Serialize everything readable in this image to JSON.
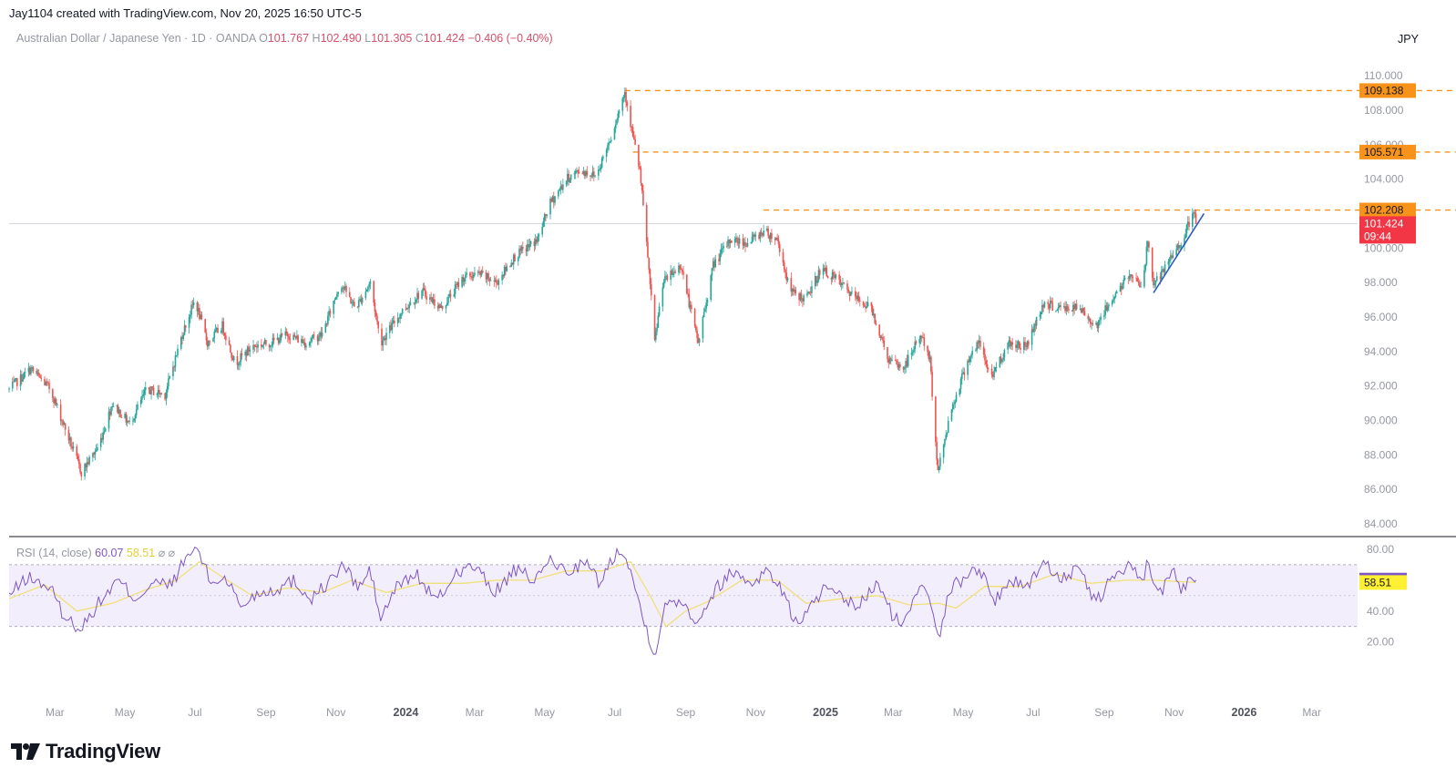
{
  "header": {
    "attribution": "Jay1104 created with TradingView.com, Nov 20, 2025 16:50 UTC-5"
  },
  "legend": {
    "symbol": "Australian Dollar / Japanese Yen · 1D · OANDA",
    "open_label": "O",
    "open": "101.767",
    "high_label": "H",
    "high": "102.490",
    "low_label": "L",
    "low": "101.305",
    "close_label": "C",
    "close": "101.424",
    "change": "−0.406 (−0.40%)"
  },
  "currency": "JPY",
  "rsi_legend": {
    "label": "RSI (14, close)",
    "rsi": "60.07",
    "ma": "58.51",
    "extra": "⌀ ⌀"
  },
  "brand": {
    "name": "TradingView"
  },
  "colors": {
    "up": "#26a69a",
    "down": "#ef5350",
    "level": "#f7931a",
    "price_tag": "#f23645",
    "rsi": "#7e57c2",
    "rsi_ma": "#f0e07a",
    "rsi_band": "#f3eefb",
    "trendline": "#2a5cbf"
  },
  "chart_data": [
    {
      "type": "candlestick",
      "title": "Australian Dollar / Japanese Yen · 1D · OANDA",
      "ylim": [
        84,
        110.8
      ],
      "y_ticks": [
        "110.000",
        "108.000",
        "106.000",
        "104.000",
        "102.000",
        "100.000",
        "98.000",
        "96.000",
        "94.000",
        "92.000",
        "90.000",
        "88.000",
        "86.000",
        "84.000"
      ],
      "x_tick_labels": [
        {
          "label": "Mar",
          "bold": false
        },
        {
          "label": "May",
          "bold": false
        },
        {
          "label": "Jul",
          "bold": false
        },
        {
          "label": "Sep",
          "bold": false
        },
        {
          "label": "Nov",
          "bold": false
        },
        {
          "label": "2024",
          "bold": true
        },
        {
          "label": "Mar",
          "bold": false
        },
        {
          "label": "May",
          "bold": false
        },
        {
          "label": "Jul",
          "bold": false
        },
        {
          "label": "Sep",
          "bold": false
        },
        {
          "label": "Nov",
          "bold": false
        },
        {
          "label": "2025",
          "bold": true
        },
        {
          "label": "Mar",
          "bold": false
        },
        {
          "label": "May",
          "bold": false
        },
        {
          "label": "Jul",
          "bold": false
        },
        {
          "label": "Sep",
          "bold": false
        },
        {
          "label": "Nov",
          "bold": false
        },
        {
          "label": "2026",
          "bold": true
        },
        {
          "label": "Mar",
          "bold": false
        }
      ],
      "x_range": [
        "2023-01-20",
        "2026-04-10"
      ],
      "close_path": [
        [
          "2023-01-20",
          91.8
        ],
        [
          "2023-02-08",
          93.0
        ],
        [
          "2023-02-25",
          91.8
        ],
        [
          "2023-03-10",
          89.5
        ],
        [
          "2023-03-24",
          87.0
        ],
        [
          "2023-04-08",
          88.5
        ],
        [
          "2023-04-20",
          91.0
        ],
        [
          "2023-05-05",
          89.8
        ],
        [
          "2023-05-20",
          91.8
        ],
        [
          "2023-06-05",
          91.5
        ],
        [
          "2023-06-20",
          95.0
        ],
        [
          "2023-07-01",
          97.0
        ],
        [
          "2023-07-12",
          94.5
        ],
        [
          "2023-07-25",
          95.5
        ],
        [
          "2023-08-05",
          93.3
        ],
        [
          "2023-08-20",
          94.3
        ],
        [
          "2023-09-05",
          94.5
        ],
        [
          "2023-09-20",
          95.0
        ],
        [
          "2023-10-05",
          94.5
        ],
        [
          "2023-10-20",
          95.0
        ],
        [
          "2023-11-05",
          98.0
        ],
        [
          "2023-11-18",
          96.5
        ],
        [
          "2023-12-01",
          98.0
        ],
        [
          "2023-12-10",
          94.5
        ],
        [
          "2023-12-28",
          96.3
        ],
        [
          "2024-01-15",
          97.5
        ],
        [
          "2024-02-01",
          96.5
        ],
        [
          "2024-02-20",
          98.3
        ],
        [
          "2024-03-05",
          98.5
        ],
        [
          "2024-03-20",
          98.0
        ],
        [
          "2024-04-05",
          99.5
        ],
        [
          "2024-04-25",
          100.5
        ],
        [
          "2024-05-05",
          102.5
        ],
        [
          "2024-05-20",
          104.0
        ],
        [
          "2024-06-01",
          104.5
        ],
        [
          "2024-06-15",
          104.2
        ],
        [
          "2024-06-28",
          106.5
        ],
        [
          "2024-07-05",
          108.0
        ],
        [
          "2024-07-10",
          109.1
        ],
        [
          "2024-07-17",
          106.5
        ],
        [
          "2024-07-23",
          104.5
        ],
        [
          "2024-07-30",
          99.5
        ],
        [
          "2024-08-05",
          94.5
        ],
        [
          "2024-08-12",
          98.0
        ],
        [
          "2024-08-20",
          98.5
        ],
        [
          "2024-08-28",
          99.0
        ],
        [
          "2024-09-05",
          96.5
        ],
        [
          "2024-09-12",
          94.5
        ],
        [
          "2024-09-25",
          99.0
        ],
        [
          "2024-10-10",
          100.5
        ],
        [
          "2024-10-25",
          100.3
        ],
        [
          "2024-11-08",
          101.0
        ],
        [
          "2024-11-20",
          100.5
        ],
        [
          "2024-12-01",
          97.5
        ],
        [
          "2024-12-15",
          97.0
        ],
        [
          "2024-12-28",
          98.8
        ],
        [
          "2025-01-10",
          98.2
        ],
        [
          "2025-01-25",
          97.2
        ],
        [
          "2025-02-10",
          96.5
        ],
        [
          "2025-02-25",
          93.5
        ],
        [
          "2025-03-10",
          93.0
        ],
        [
          "2025-03-25",
          95.0
        ],
        [
          "2025-04-02",
          93.5
        ],
        [
          "2025-04-09",
          87.0
        ],
        [
          "2025-04-20",
          90.5
        ],
        [
          "2025-05-05",
          93.5
        ],
        [
          "2025-05-15",
          94.5
        ],
        [
          "2025-05-25",
          92.5
        ],
        [
          "2025-06-10",
          94.5
        ],
        [
          "2025-06-25",
          94.3
        ],
        [
          "2025-07-10",
          96.8
        ],
        [
          "2025-07-25",
          96.5
        ],
        [
          "2025-08-10",
          96.5
        ],
        [
          "2025-08-25",
          95.5
        ],
        [
          "2025-09-10",
          97.3
        ],
        [
          "2025-09-25",
          98.5
        ],
        [
          "2025-10-05",
          97.8
        ],
        [
          "2025-10-09",
          100.5
        ],
        [
          "2025-10-14",
          98.0
        ],
        [
          "2025-10-20",
          98.3
        ],
        [
          "2025-10-30",
          99.5
        ],
        [
          "2025-11-08",
          100.5
        ],
        [
          "2025-11-18",
          102.0
        ],
        [
          "2025-11-20",
          101.424
        ]
      ],
      "horizontal_levels": [
        {
          "value": 109.138,
          "label": "109.138",
          "from": "2024-07-10"
        },
        {
          "value": 105.571,
          "label": "105.571",
          "from": "2024-07-17"
        },
        {
          "value": 102.208,
          "label": "102.208",
          "from": "2024-11-08"
        }
      ],
      "trendline": [
        [
          "2025-10-14",
          97.4
        ],
        [
          "2025-11-27",
          102.0
        ]
      ],
      "last_price": {
        "value": 101.424,
        "label": "101.424",
        "countdown": "09:44"
      }
    },
    {
      "type": "line",
      "title": "RSI (14, close)",
      "ylim": [
        11,
        83.5
      ],
      "y_ticks": [
        "80.00",
        "60.00",
        "40.00",
        "20.00"
      ],
      "band": [
        30,
        70
      ],
      "midline": 50,
      "series": [
        {
          "name": "RSI",
          "last_label": "60.07",
          "points": [
            [
              "2023-01-20",
              50
            ],
            [
              "2023-02-05",
              62
            ],
            [
              "2023-02-25",
              55
            ],
            [
              "2023-03-10",
              35
            ],
            [
              "2023-03-24",
              29
            ],
            [
              "2023-04-08",
              45
            ],
            [
              "2023-04-25",
              60
            ],
            [
              "2023-05-10",
              48
            ],
            [
              "2023-05-25",
              58
            ],
            [
              "2023-06-10",
              57
            ],
            [
              "2023-06-25",
              76
            ],
            [
              "2023-07-03",
              81
            ],
            [
              "2023-07-15",
              58
            ],
            [
              "2023-07-28",
              62
            ],
            [
              "2023-08-10",
              43
            ],
            [
              "2023-08-25",
              52
            ],
            [
              "2023-09-10",
              54
            ],
            [
              "2023-09-25",
              60
            ],
            [
              "2023-10-10",
              48
            ],
            [
              "2023-10-25",
              58
            ],
            [
              "2023-11-08",
              70
            ],
            [
              "2023-11-20",
              55
            ],
            [
              "2023-12-01",
              66
            ],
            [
              "2023-12-10",
              35
            ],
            [
              "2023-12-25",
              57
            ],
            [
              "2024-01-10",
              64
            ],
            [
              "2024-01-28",
              46
            ],
            [
              "2024-02-15",
              66
            ],
            [
              "2024-03-01",
              69
            ],
            [
              "2024-03-18",
              52
            ],
            [
              "2024-04-05",
              66
            ],
            [
              "2024-04-25",
              60
            ],
            [
              "2024-05-05",
              74
            ],
            [
              "2024-05-20",
              65
            ],
            [
              "2024-06-05",
              72
            ],
            [
              "2024-06-18",
              58
            ],
            [
              "2024-06-30",
              75
            ],
            [
              "2024-07-08",
              82
            ],
            [
              "2024-07-15",
              66
            ],
            [
              "2024-07-25",
              38
            ],
            [
              "2024-08-05",
              12
            ],
            [
              "2024-08-15",
              45
            ],
            [
              "2024-08-28",
              48
            ],
            [
              "2024-09-10",
              33
            ],
            [
              "2024-09-28",
              55
            ],
            [
              "2024-10-12",
              66
            ],
            [
              "2024-10-28",
              58
            ],
            [
              "2024-11-10",
              66
            ],
            [
              "2024-11-22",
              57
            ],
            [
              "2024-12-05",
              33
            ],
            [
              "2024-12-15",
              38
            ],
            [
              "2024-12-30",
              54
            ],
            [
              "2025-01-15",
              48
            ],
            [
              "2025-01-30",
              43
            ],
            [
              "2025-02-15",
              58
            ],
            [
              "2025-02-28",
              38
            ],
            [
              "2025-03-10",
              30
            ],
            [
              "2025-03-25",
              60
            ],
            [
              "2025-04-02",
              50
            ],
            [
              "2025-04-10",
              24
            ],
            [
              "2025-04-20",
              55
            ],
            [
              "2025-05-05",
              63
            ],
            [
              "2025-05-15",
              69
            ],
            [
              "2025-05-28",
              46
            ],
            [
              "2025-06-10",
              60
            ],
            [
              "2025-06-25",
              56
            ],
            [
              "2025-07-10",
              71
            ],
            [
              "2025-07-25",
              62
            ],
            [
              "2025-08-10",
              66
            ],
            [
              "2025-08-25",
              46
            ],
            [
              "2025-09-10",
              63
            ],
            [
              "2025-09-25",
              70
            ],
            [
              "2025-10-05",
              55
            ],
            [
              "2025-10-09",
              76
            ],
            [
              "2025-10-15",
              53
            ],
            [
              "2025-10-22",
              55
            ],
            [
              "2025-10-30",
              68
            ],
            [
              "2025-11-08",
              52
            ],
            [
              "2025-11-15",
              65
            ],
            [
              "2025-11-20",
              60.07
            ]
          ]
        },
        {
          "name": "RSI-based MA",
          "last_label": "58.51",
          "points": [
            [
              "2023-01-20",
              48
            ],
            [
              "2023-02-20",
              57
            ],
            [
              "2023-03-20",
              40
            ],
            [
              "2023-04-20",
              45
            ],
            [
              "2023-05-20",
              54
            ],
            [
              "2023-06-15",
              60
            ],
            [
              "2023-07-05",
              72
            ],
            [
              "2023-07-25",
              62
            ],
            [
              "2023-08-20",
              50
            ],
            [
              "2023-09-20",
              55
            ],
            [
              "2023-10-20",
              52
            ],
            [
              "2023-11-15",
              60
            ],
            [
              "2023-12-15",
              52
            ],
            [
              "2024-01-15",
              58
            ],
            [
              "2024-02-20",
              58
            ],
            [
              "2024-03-20",
              60
            ],
            [
              "2024-04-20",
              60
            ],
            [
              "2024-05-20",
              66
            ],
            [
              "2024-06-20",
              66
            ],
            [
              "2024-07-15",
              72
            ],
            [
              "2024-08-01",
              50
            ],
            [
              "2024-08-15",
              30
            ],
            [
              "2024-09-01",
              40
            ],
            [
              "2024-09-20",
              46
            ],
            [
              "2024-10-20",
              60
            ],
            [
              "2024-11-20",
              60
            ],
            [
              "2024-12-15",
              45
            ],
            [
              "2025-01-15",
              48
            ],
            [
              "2025-02-15",
              50
            ],
            [
              "2025-03-15",
              44
            ],
            [
              "2025-04-10",
              45
            ],
            [
              "2025-04-25",
              42
            ],
            [
              "2025-05-20",
              56
            ],
            [
              "2025-06-20",
              56
            ],
            [
              "2025-07-20",
              64
            ],
            [
              "2025-08-20",
              58
            ],
            [
              "2025-09-20",
              60
            ],
            [
              "2025-10-15",
              60
            ],
            [
              "2025-11-20",
              58.51
            ]
          ]
        }
      ]
    }
  ]
}
